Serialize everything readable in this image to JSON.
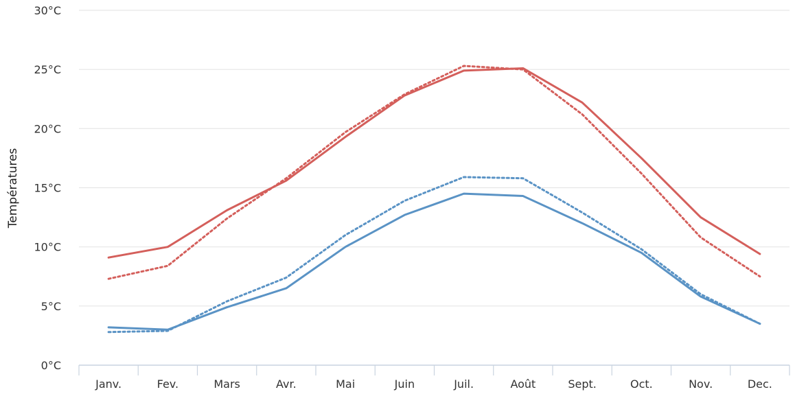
{
  "chart_data": {
    "type": "line",
    "title": "",
    "xlabel": "",
    "ylabel": "Températures",
    "categories": [
      "Janv.",
      "Fev.",
      "Mars",
      "Avr.",
      "Mai",
      "Juin",
      "Juil.",
      "Août",
      "Sept.",
      "Oct.",
      "Nov.",
      "Dec."
    ],
    "ylim": [
      0,
      30
    ],
    "yticks": [
      0,
      5,
      10,
      15,
      20,
      25,
      30
    ],
    "ytick_labels": [
      "0°C",
      "5°C",
      "10°C",
      "15°C",
      "20°C",
      "25°C",
      "30°C"
    ],
    "grid": true,
    "series": [
      {
        "color": "#d45f5b",
        "dash": "solid",
        "values": [
          9.1,
          10.0,
          13.1,
          15.6,
          19.3,
          22.8,
          24.9,
          25.1,
          22.2,
          17.5,
          12.5,
          9.4
        ]
      },
      {
        "color": "#d45f5b",
        "dash": "dotted",
        "values": [
          7.3,
          8.4,
          12.4,
          15.8,
          19.7,
          22.9,
          25.3,
          25.0,
          21.2,
          16.2,
          10.8,
          7.5
        ]
      },
      {
        "color": "#5a93c5",
        "dash": "solid",
        "values": [
          3.2,
          3.0,
          4.9,
          6.5,
          10.0,
          12.7,
          14.5,
          14.3,
          12.0,
          9.5,
          5.8,
          3.5
        ]
      },
      {
        "color": "#5a93c5",
        "dash": "dotted",
        "values": [
          2.8,
          2.9,
          5.4,
          7.4,
          11.0,
          13.9,
          15.9,
          15.8,
          12.9,
          9.8,
          6.0,
          3.5
        ]
      }
    ]
  }
}
